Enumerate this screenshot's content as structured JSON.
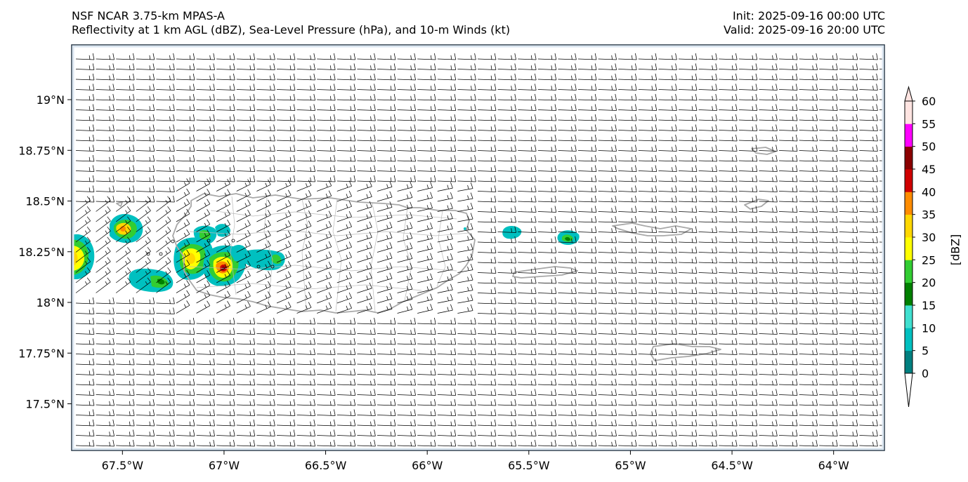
{
  "header": {
    "model": "NSF NCAR 3.75-km MPAS-A",
    "fields": "Reflectivity at 1 km AGL (dBZ), Sea-Level Pressure (hPa), and 10-m Winds (kt)",
    "init": "Init: 2025-09-16 00:00 UTC",
    "valid": "Valid: 2025-09-16 20:00 UTC"
  },
  "chart_data": {
    "type": "heatmap",
    "map": {
      "lon_range": [
        -67.75,
        -63.75
      ],
      "lat_range": [
        17.27,
        19.27
      ]
    },
    "x_ticks": [
      "67.5°W",
      "67°W",
      "66.5°W",
      "66°W",
      "65.5°W",
      "65°W",
      "64.5°W",
      "64°W"
    ],
    "x_tick_values": [
      -67.5,
      -67.0,
      -66.5,
      -66.0,
      -65.5,
      -65.0,
      -64.5,
      -64.0
    ],
    "y_ticks": [
      "19°N",
      "18.75°N",
      "18.5°N",
      "18.25°N",
      "18°N",
      "17.75°N",
      "17.5°N"
    ],
    "y_tick_values": [
      19.0,
      18.75,
      18.5,
      18.25,
      18.0,
      17.75,
      17.5
    ],
    "colorbar": {
      "label": "[dBZ]",
      "ticks": [
        "0",
        "5",
        "10",
        "15",
        "20",
        "25",
        "30",
        "35",
        "40",
        "45",
        "50",
        "55",
        "60"
      ],
      "colors": [
        "#ffffff",
        "#008080",
        "#00c0c0",
        "#40e0d0",
        "#008000",
        "#32cd32",
        "#ffff00",
        "#ffd700",
        "#ff8c00",
        "#d00000",
        "#8b0000",
        "#ff00ff",
        "#ffe4e1"
      ]
    },
    "colors": {
      "coast": "#a8a8a8",
      "barb": "#000000",
      "frame": "#1a2a3a"
    }
  }
}
